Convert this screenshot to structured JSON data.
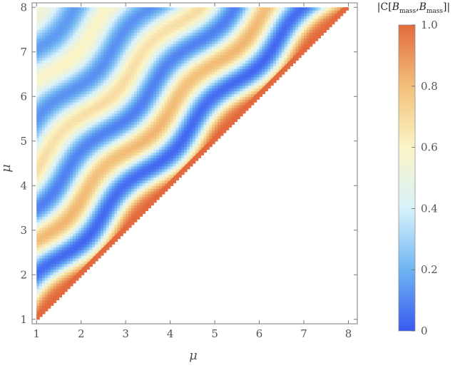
{
  "chart_data": {
    "type": "heatmap",
    "title": "",
    "xlabel": "μ",
    "ylabel": "μ",
    "xlim": [
      0.9,
      8.2
    ],
    "ylim": [
      0.9,
      8.1
    ],
    "x_ticks": [
      "1",
      "2",
      "3",
      "4",
      "5",
      "6",
      "7",
      "8"
    ],
    "y_ticks": [
      "1",
      "2",
      "3",
      "4",
      "5",
      "6",
      "7",
      "8"
    ],
    "region": "upper triangle (y ≥ x), 1 ≤ μ ≤ 8",
    "diagonal_value": 1.0,
    "colorbar": {
      "label": {
        "prefix": "|C[",
        "var": "B",
        "sub": "mass",
        "sep": ",",
        "suffix": "]|"
      },
      "range": [
        0,
        1
      ],
      "ticks": [
        "0",
        "0.2",
        "0.4",
        "0.6",
        "0.8",
        "1.0"
      ],
      "colors": [
        "#3a5af0",
        "#6fb4f2",
        "#d8f2fb",
        "#fbf4c6",
        "#f2c07a",
        "#e26a3c"
      ]
    }
  }
}
